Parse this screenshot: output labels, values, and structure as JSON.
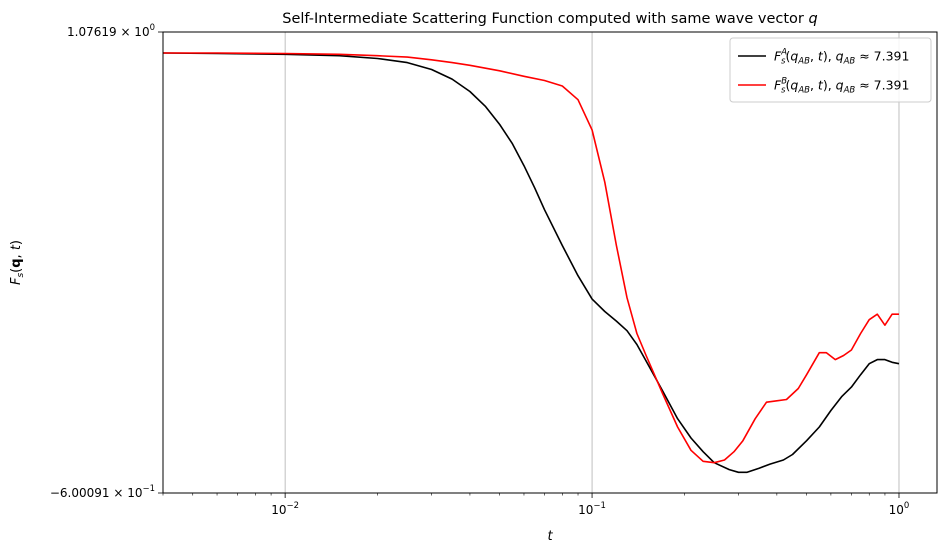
{
  "chart_data": {
    "type": "line",
    "title": "Self-Intermediate Scattering Function computed with same wave vector q",
    "xlabel": "t",
    "ylabel": "F_s(q, t)",
    "x_scale": "log",
    "y_scale": "log",
    "xlim": [
      0.004,
      1.33
    ],
    "ylim": [
      -0.600091,
      1.07619
    ],
    "x_ticks": [
      {
        "value": 0.01,
        "base": "10",
        "exp": "−2"
      },
      {
        "value": 0.1,
        "base": "10",
        "exp": "−1"
      },
      {
        "value": 1.0,
        "base": "10",
        "exp": "0"
      }
    ],
    "y_tick_labels": {
      "top": {
        "mantissa": "1.07619",
        "exp": "0"
      },
      "bottom": {
        "mantissa": "−6.00091",
        "exp": "−1"
      }
    },
    "grid": "x-major",
    "legend_position": "top-right",
    "series": [
      {
        "name": "F_s^A(q_AB, t), q_AB ≈ 7.391",
        "color": "#000000",
        "x": [
          0.004,
          0.006,
          0.01,
          0.015,
          0.02,
          0.025,
          0.03,
          0.035,
          0.04,
          0.045,
          0.05,
          0.055,
          0.06,
          0.065,
          0.07,
          0.08,
          0.09,
          0.1,
          0.11,
          0.12,
          0.13,
          0.14,
          0.15,
          0.17,
          0.19,
          0.21,
          0.23,
          0.25,
          0.28,
          0.3,
          0.32,
          0.35,
          0.38,
          0.42,
          0.45,
          0.5,
          0.55,
          0.6,
          0.65,
          0.7,
          0.75,
          0.8,
          0.85,
          0.9,
          0.95,
          1.0
        ],
        "y": [
          1.0,
          0.998,
          0.995,
          0.99,
          0.98,
          0.965,
          0.94,
          0.905,
          0.86,
          0.805,
          0.74,
          0.67,
          0.59,
          0.51,
          0.43,
          0.3,
          0.19,
          0.105,
          0.06,
          0.025,
          -0.01,
          -0.06,
          -0.12,
          -0.23,
          -0.33,
          -0.4,
          -0.45,
          -0.49,
          -0.515,
          -0.525,
          -0.525,
          -0.51,
          -0.495,
          -0.48,
          -0.46,
          -0.41,
          -0.36,
          -0.3,
          -0.25,
          -0.215,
          -0.17,
          -0.13,
          -0.115,
          -0.115,
          -0.125,
          -0.13
        ]
      },
      {
        "name": "F_s^B(q_AB, t), q_AB ≈ 7.391",
        "color": "#ff0000",
        "x": [
          0.004,
          0.006,
          0.01,
          0.015,
          0.02,
          0.025,
          0.03,
          0.035,
          0.04,
          0.05,
          0.06,
          0.07,
          0.08,
          0.09,
          0.1,
          0.11,
          0.12,
          0.13,
          0.14,
          0.15,
          0.17,
          0.19,
          0.21,
          0.23,
          0.25,
          0.27,
          0.29,
          0.31,
          0.34,
          0.37,
          0.4,
          0.43,
          0.47,
          0.5,
          0.55,
          0.58,
          0.62,
          0.66,
          0.7,
          0.75,
          0.8,
          0.85,
          0.9,
          0.95,
          1.0
        ],
        "y": [
          1.0,
          1.0,
          0.998,
          0.995,
          0.99,
          0.985,
          0.975,
          0.965,
          0.955,
          0.935,
          0.915,
          0.9,
          0.88,
          0.83,
          0.72,
          0.53,
          0.3,
          0.11,
          -0.02,
          -0.1,
          -0.24,
          -0.36,
          -0.445,
          -0.485,
          -0.49,
          -0.48,
          -0.45,
          -0.41,
          -0.33,
          -0.27,
          -0.265,
          -0.26,
          -0.22,
          -0.17,
          -0.09,
          -0.09,
          -0.115,
          -0.1,
          -0.08,
          -0.02,
          0.03,
          0.05,
          0.01,
          0.05,
          0.05
        ]
      }
    ]
  }
}
